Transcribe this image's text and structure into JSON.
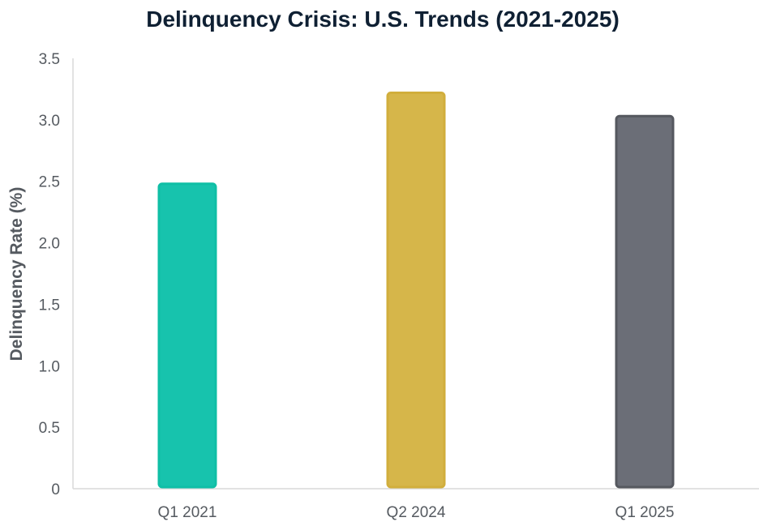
{
  "chart_data": {
    "type": "bar",
    "title": "Delinquency Crisis: U.S. Trends (2021-2025)",
    "xlabel": "",
    "ylabel": "Delinquency Rate (%)",
    "categories": [
      "Q1 2021",
      "Q2 2024",
      "Q1 2025"
    ],
    "values": [
      2.48,
      3.22,
      3.03
    ],
    "colors": [
      "#17c3ad",
      "#d6b64a",
      "#6b6e77"
    ],
    "border_colors": [
      "#0fbfa6",
      "#d1ae3c",
      "#55585f"
    ],
    "ylim": [
      0,
      3.5
    ],
    "yticks": [
      "0",
      "0.5",
      "1.0",
      "1.5",
      "2.0",
      "2.5",
      "3.0",
      "3.5"
    ],
    "grid": false,
    "legend": "none"
  }
}
